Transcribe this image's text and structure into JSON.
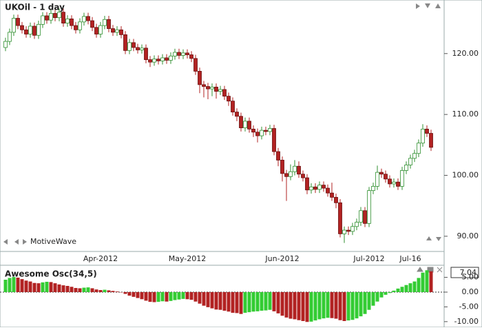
{
  "chart_data": [
    {
      "type": "candlestick",
      "title": "UKOil - 1 day",
      "watermark": "MotiveWave",
      "categories": [
        null,
        null,
        null,
        null,
        null,
        null,
        null,
        null,
        null,
        null,
        null,
        null,
        null,
        null,
        null,
        null,
        null,
        null,
        null,
        null,
        null,
        null,
        null,
        "Apr-2012",
        null,
        null,
        null,
        null,
        null,
        null,
        null,
        null,
        null,
        null,
        null,
        null,
        null,
        null,
        null,
        null,
        null,
        null,
        null,
        null,
        "May-2012",
        null,
        null,
        null,
        null,
        null,
        null,
        null,
        null,
        null,
        null,
        null,
        null,
        null,
        null,
        null,
        null,
        null,
        null,
        null,
        null,
        null,
        null,
        "Jun-2012",
        null,
        null,
        null,
        null,
        null,
        null,
        null,
        null,
        null,
        null,
        null,
        null,
        null,
        null,
        null,
        null,
        null,
        null,
        null,
        null,
        "Jul-2012",
        null,
        null,
        null,
        null,
        null,
        null,
        null,
        null,
        null,
        "Jul-16",
        null,
        null,
        null,
        null,
        null
      ],
      "open": [
        121.0,
        122.0,
        123.5,
        125.8,
        124.6,
        123.9,
        123.2,
        124.5,
        123.0,
        124.8,
        126.2,
        125.5,
        126.6,
        125.9,
        126.8,
        125.0,
        125.7,
        124.6,
        123.9,
        125.2,
        126.1,
        125.4,
        124.3,
        123.2,
        124.6,
        125.6,
        124.1,
        123.5,
        123.9,
        123.1,
        120.5,
        121.8,
        121.0,
        120.6,
        120.9,
        119.0,
        118.6,
        119.1,
        118.8,
        119.3,
        118.9,
        119.6,
        120.2,
        119.7,
        120.1,
        119.8,
        119.2,
        117.1,
        114.9,
        114.6,
        114.2,
        114.5,
        113.8,
        114.1,
        113.0,
        112.2,
        110.4,
        109.7,
        107.8,
        108.9,
        107.6,
        107.1,
        106.5,
        107.4,
        107.2,
        107.7,
        103.9,
        102.5,
        100.3,
        99.8,
        100.6,
        101.5,
        100.2,
        99.6,
        97.6,
        98.1,
        97.7,
        98.4,
        97.9,
        97.1,
        96.4,
        95.5,
        90.4,
        91.0,
        90.8,
        91.6,
        92.3,
        94.2,
        92.1,
        97.5,
        98.2,
        100.5,
        100.2,
        99.4,
        98.6,
        98.9,
        98.2,
        100.8,
        101.7,
        102.8,
        103.6,
        105.3,
        107.6,
        106.9
      ],
      "high": [
        122.6,
        124.1,
        126.4,
        126.4,
        125.2,
        124.5,
        125.1,
        125.1,
        125.4,
        126.8,
        126.8,
        127.2,
        127.2,
        127.4,
        127.4,
        126.3,
        126.3,
        125.2,
        125.8,
        126.7,
        126.7,
        126.0,
        124.9,
        125.2,
        126.2,
        126.2,
        124.7,
        124.5,
        124.5,
        123.7,
        122.4,
        122.4,
        121.6,
        121.5,
        121.5,
        119.6,
        119.7,
        119.7,
        119.9,
        119.9,
        120.2,
        120.8,
        120.8,
        120.7,
        120.7,
        120.4,
        119.8,
        117.7,
        115.5,
        115.2,
        115.1,
        115.1,
        114.7,
        114.7,
        113.6,
        112.8,
        111.0,
        110.3,
        109.5,
        109.5,
        108.2,
        107.7,
        108.0,
        108.0,
        108.3,
        108.3,
        104.5,
        103.1,
        100.9,
        101.8,
        102.5,
        102.3,
        100.8,
        100.2,
        98.7,
        98.7,
        99.0,
        99.0,
        98.5,
        98.8,
        97.0,
        96.1,
        91.6,
        91.6,
        92.2,
        92.9,
        94.8,
        94.8,
        98.1,
        98.8,
        101.6,
        101.1,
        100.8,
        100.0,
        99.5,
        99.5,
        101.4,
        102.3,
        103.4,
        104.2,
        105.9,
        108.4,
        108.2,
        107.5
      ],
      "low": [
        120.4,
        121.4,
        122.9,
        124.0,
        123.3,
        122.6,
        122.6,
        122.4,
        122.4,
        124.2,
        124.9,
        124.9,
        125.3,
        125.3,
        124.4,
        124.4,
        124.0,
        123.3,
        123.3,
        124.6,
        124.8,
        123.7,
        122.6,
        122.6,
        124.0,
        123.5,
        122.9,
        122.9,
        122.5,
        119.9,
        119.9,
        120.4,
        120.0,
        120.0,
        118.4,
        117.8,
        118.0,
        118.2,
        118.2,
        118.3,
        118.3,
        119.0,
        119.1,
        119.1,
        119.2,
        118.6,
        116.5,
        113.5,
        112.8,
        112.5,
        113.0,
        112.6,
        113.2,
        112.4,
        111.4,
        109.8,
        108.9,
        107.2,
        107.2,
        107.0,
        106.3,
        105.4,
        105.9,
        106.6,
        106.6,
        103.3,
        101.5,
        99.0,
        95.8,
        99.2,
        100.0,
        99.6,
        99.0,
        96.9,
        97.0,
        97.1,
        97.1,
        97.3,
        96.5,
        95.8,
        94.6,
        89.8,
        88.9,
        90.2,
        90.2,
        91.0,
        91.7,
        91.5,
        91.5,
        96.9,
        97.6,
        99.6,
        98.8,
        98.0,
        98.0,
        97.6,
        97.6,
        100.2,
        101.1,
        102.2,
        103.0,
        104.7,
        106.3,
        104.0
      ],
      "close": [
        122.0,
        123.5,
        125.8,
        124.6,
        123.9,
        123.2,
        124.5,
        123.0,
        124.8,
        126.2,
        125.5,
        126.6,
        125.9,
        126.8,
        125.0,
        125.7,
        124.6,
        123.9,
        125.2,
        126.1,
        125.4,
        124.3,
        123.2,
        124.6,
        125.6,
        124.1,
        123.5,
        123.9,
        123.1,
        120.5,
        121.8,
        121.0,
        120.6,
        120.9,
        119.0,
        118.6,
        119.1,
        118.8,
        119.3,
        118.9,
        119.6,
        120.2,
        119.7,
        120.1,
        119.8,
        119.2,
        117.1,
        114.9,
        114.6,
        114.2,
        114.5,
        113.8,
        114.1,
        113.0,
        112.2,
        110.4,
        109.7,
        107.8,
        108.9,
        107.6,
        107.1,
        106.5,
        107.4,
        107.2,
        107.7,
        103.9,
        102.5,
        100.3,
        99.8,
        100.6,
        101.5,
        100.2,
        99.6,
        97.6,
        98.1,
        97.7,
        98.4,
        97.9,
        97.1,
        96.4,
        95.5,
        90.4,
        91.0,
        90.8,
        91.6,
        92.3,
        94.2,
        92.1,
        97.5,
        98.2,
        100.5,
        100.2,
        99.4,
        98.6,
        98.9,
        98.2,
        100.8,
        101.7,
        102.8,
        103.6,
        105.3,
        107.6,
        106.9,
        104.6
      ],
      "up_color": "#2f8f2f",
      "down_color": "#b22222",
      "ylim": [
        87.5,
        128.8
      ],
      "yticks": [
        {
          "value": 90,
          "label": "90.00"
        },
        {
          "value": 100,
          "label": "100.00"
        },
        {
          "value": 110,
          "label": "110.00"
        },
        {
          "value": 120,
          "label": "120.00"
        }
      ]
    },
    {
      "type": "bar",
      "title": "Awesome Osc(34,5)",
      "values": [
        4.2,
        4.8,
        5.1,
        4.9,
        4.4,
        3.9,
        3.6,
        3.1,
        3.0,
        3.3,
        3.5,
        3.4,
        3.0,
        2.6,
        2.3,
        2.1,
        1.8,
        1.4,
        1.3,
        1.5,
        1.6,
        1.3,
        0.9,
        0.7,
        0.8,
        0.6,
        0.4,
        0.2,
        -0.1,
        -0.6,
        -1.2,
        -1.6,
        -2.0,
        -2.4,
        -2.9,
        -3.3,
        -3.4,
        -3.3,
        -3.1,
        -3.2,
        -3.0,
        -2.7,
        -2.5,
        -2.3,
        -2.4,
        -2.6,
        -3.2,
        -3.9,
        -4.6,
        -5.1,
        -5.5,
        -5.9,
        -6.0,
        -6.3,
        -6.6,
        -7.0,
        -7.1,
        -7.4,
        -7.0,
        -6.8,
        -6.6,
        -6.5,
        -6.3,
        -6.2,
        -6.0,
        -6.5,
        -7.2,
        -8.0,
        -8.6,
        -9.0,
        -9.2,
        -9.5,
        -9.8,
        -10.1,
        -10.0,
        -9.6,
        -9.2,
        -8.9,
        -8.7,
        -8.8,
        -9.0,
        -9.5,
        -9.8,
        -9.6,
        -9.4,
        -8.9,
        -8.2,
        -7.4,
        -6.0,
        -4.6,
        -3.2,
        -1.8,
        -0.9,
        -0.3,
        0.5,
        1.2,
        1.8,
        2.4,
        3.0,
        3.6,
        4.8,
        6.6,
        7.4,
        7.04
      ],
      "up_color": "#33cc33",
      "down_color": "#b22222",
      "ylim": [
        -11.9,
        9.1
      ],
      "yticks": [
        {
          "value": -10,
          "label": "-10.00"
        },
        {
          "value": -5,
          "label": "-5.00"
        },
        {
          "value": 0,
          "label": "0.00"
        },
        {
          "value": 5,
          "label": "5.00"
        }
      ]
    }
  ]
}
